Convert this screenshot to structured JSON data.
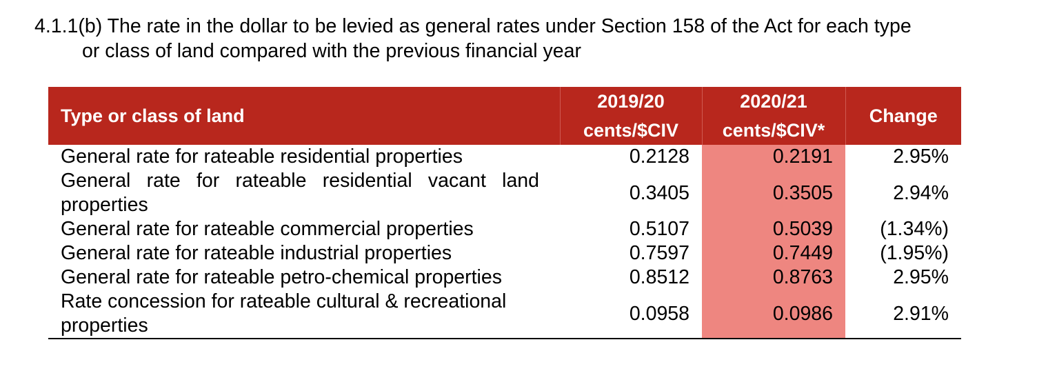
{
  "heading": {
    "line1": "4.1.1(b) The rate in the dollar to be levied as general rates under Section 158 of the Act for each type",
    "line2": "or class of land compared with the previous financial year"
  },
  "table": {
    "header": {
      "type_label": "Type or class of land",
      "col1_year": "2019/20",
      "col1_unit": "cents/$CIV",
      "col2_year": "2020/21",
      "col2_unit": "cents/$CIV*",
      "change_label": "Change"
    },
    "rows": [
      {
        "type": "General rate for rateable residential properties",
        "v2019": "0.2128",
        "v2020": "0.2191",
        "change": "2.95%"
      },
      {
        "type": "General rate for rateable residential vacant land properties",
        "v2019": "0.3405",
        "v2020": "0.3505",
        "change": "2.94%"
      },
      {
        "type": "General rate for rateable commercial properties",
        "v2019": "0.5107",
        "v2020": "0.5039",
        "change": "(1.34%)"
      },
      {
        "type": "General rate for rateable industrial properties",
        "v2019": "0.7597",
        "v2020": "0.7449",
        "change": "(1.95%)"
      },
      {
        "type": "General rate for rateable petro-chemical properties",
        "v2019": "0.8512",
        "v2020": "0.8763",
        "change": "2.95%"
      },
      {
        "type": "Rate concession for rateable cultural & recreational properties",
        "v2019": "0.0958",
        "v2020": "0.0986",
        "change": "2.91%"
      }
    ]
  },
  "colors": {
    "header_bg": "#b8271d",
    "highlight_bg": "#ee8680"
  }
}
